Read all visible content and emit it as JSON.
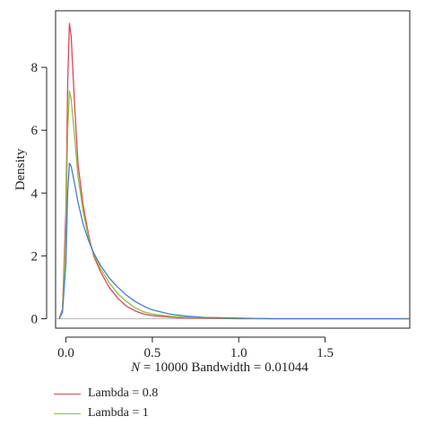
{
  "chart_data": {
    "type": "line",
    "xlabel_prefix": "N",
    "xlabel_rest": " = 10000 Bandwidth = 0.01044",
    "ylabel": "Density",
    "xlim": [
      -0.06,
      1.99
    ],
    "ylim": [
      -0.3,
      9.8
    ],
    "x_ticks": [
      0.0,
      0.5,
      1.0,
      1.5
    ],
    "x_tick_labels": [
      "0.0",
      "0.5",
      "1.0",
      "1.5"
    ],
    "y_ticks": [
      0,
      2,
      4,
      6,
      8
    ],
    "y_tick_labels": [
      "0",
      "2",
      "4",
      "6",
      "8"
    ],
    "grid": false,
    "legend_position": "bottom-left",
    "x": [
      -0.04,
      -0.02,
      0.0,
      0.01,
      0.02,
      0.03,
      0.05,
      0.07,
      0.1,
      0.13,
      0.16,
      0.2,
      0.25,
      0.3,
      0.35,
      0.4,
      0.45,
      0.5,
      0.6,
      0.7,
      0.8,
      1.0,
      1.2,
      1.5,
      1.99
    ],
    "series": [
      {
        "name": "Lambda = 0.8",
        "color": "#d9475a",
        "values": [
          0.0,
          0.3,
          3.5,
          7.5,
          9.4,
          9.0,
          6.8,
          4.9,
          3.6,
          2.7,
          2.0,
          1.5,
          1.0,
          0.65,
          0.4,
          0.25,
          0.15,
          0.1,
          0.05,
          0.02,
          0.01,
          0.0,
          0.0,
          0.0,
          0.0
        ]
      },
      {
        "name": "Lambda = 1",
        "color": "#8fbf3f",
        "values": [
          0.0,
          0.25,
          2.8,
          6.0,
          7.25,
          7.0,
          5.8,
          4.5,
          3.4,
          2.6,
          2.05,
          1.6,
          1.15,
          0.8,
          0.55,
          0.35,
          0.22,
          0.15,
          0.08,
          0.04,
          0.02,
          0.01,
          0.0,
          0.0,
          0.0
        ]
      },
      {
        "name": "",
        "color": "#4a7cc9",
        "values": [
          0.0,
          0.2,
          1.8,
          4.0,
          4.95,
          4.85,
          4.3,
          3.7,
          3.0,
          2.5,
          2.1,
          1.7,
          1.3,
          1.0,
          0.75,
          0.55,
          0.4,
          0.28,
          0.15,
          0.08,
          0.04,
          0.02,
          0.0,
          0.0,
          0.0
        ]
      }
    ]
  },
  "legend": {
    "items": [
      {
        "label": "Lambda = 0.8",
        "color": "#d9475a"
      },
      {
        "label": "Lambda = 1",
        "color": "#8fbf3f"
      }
    ]
  }
}
